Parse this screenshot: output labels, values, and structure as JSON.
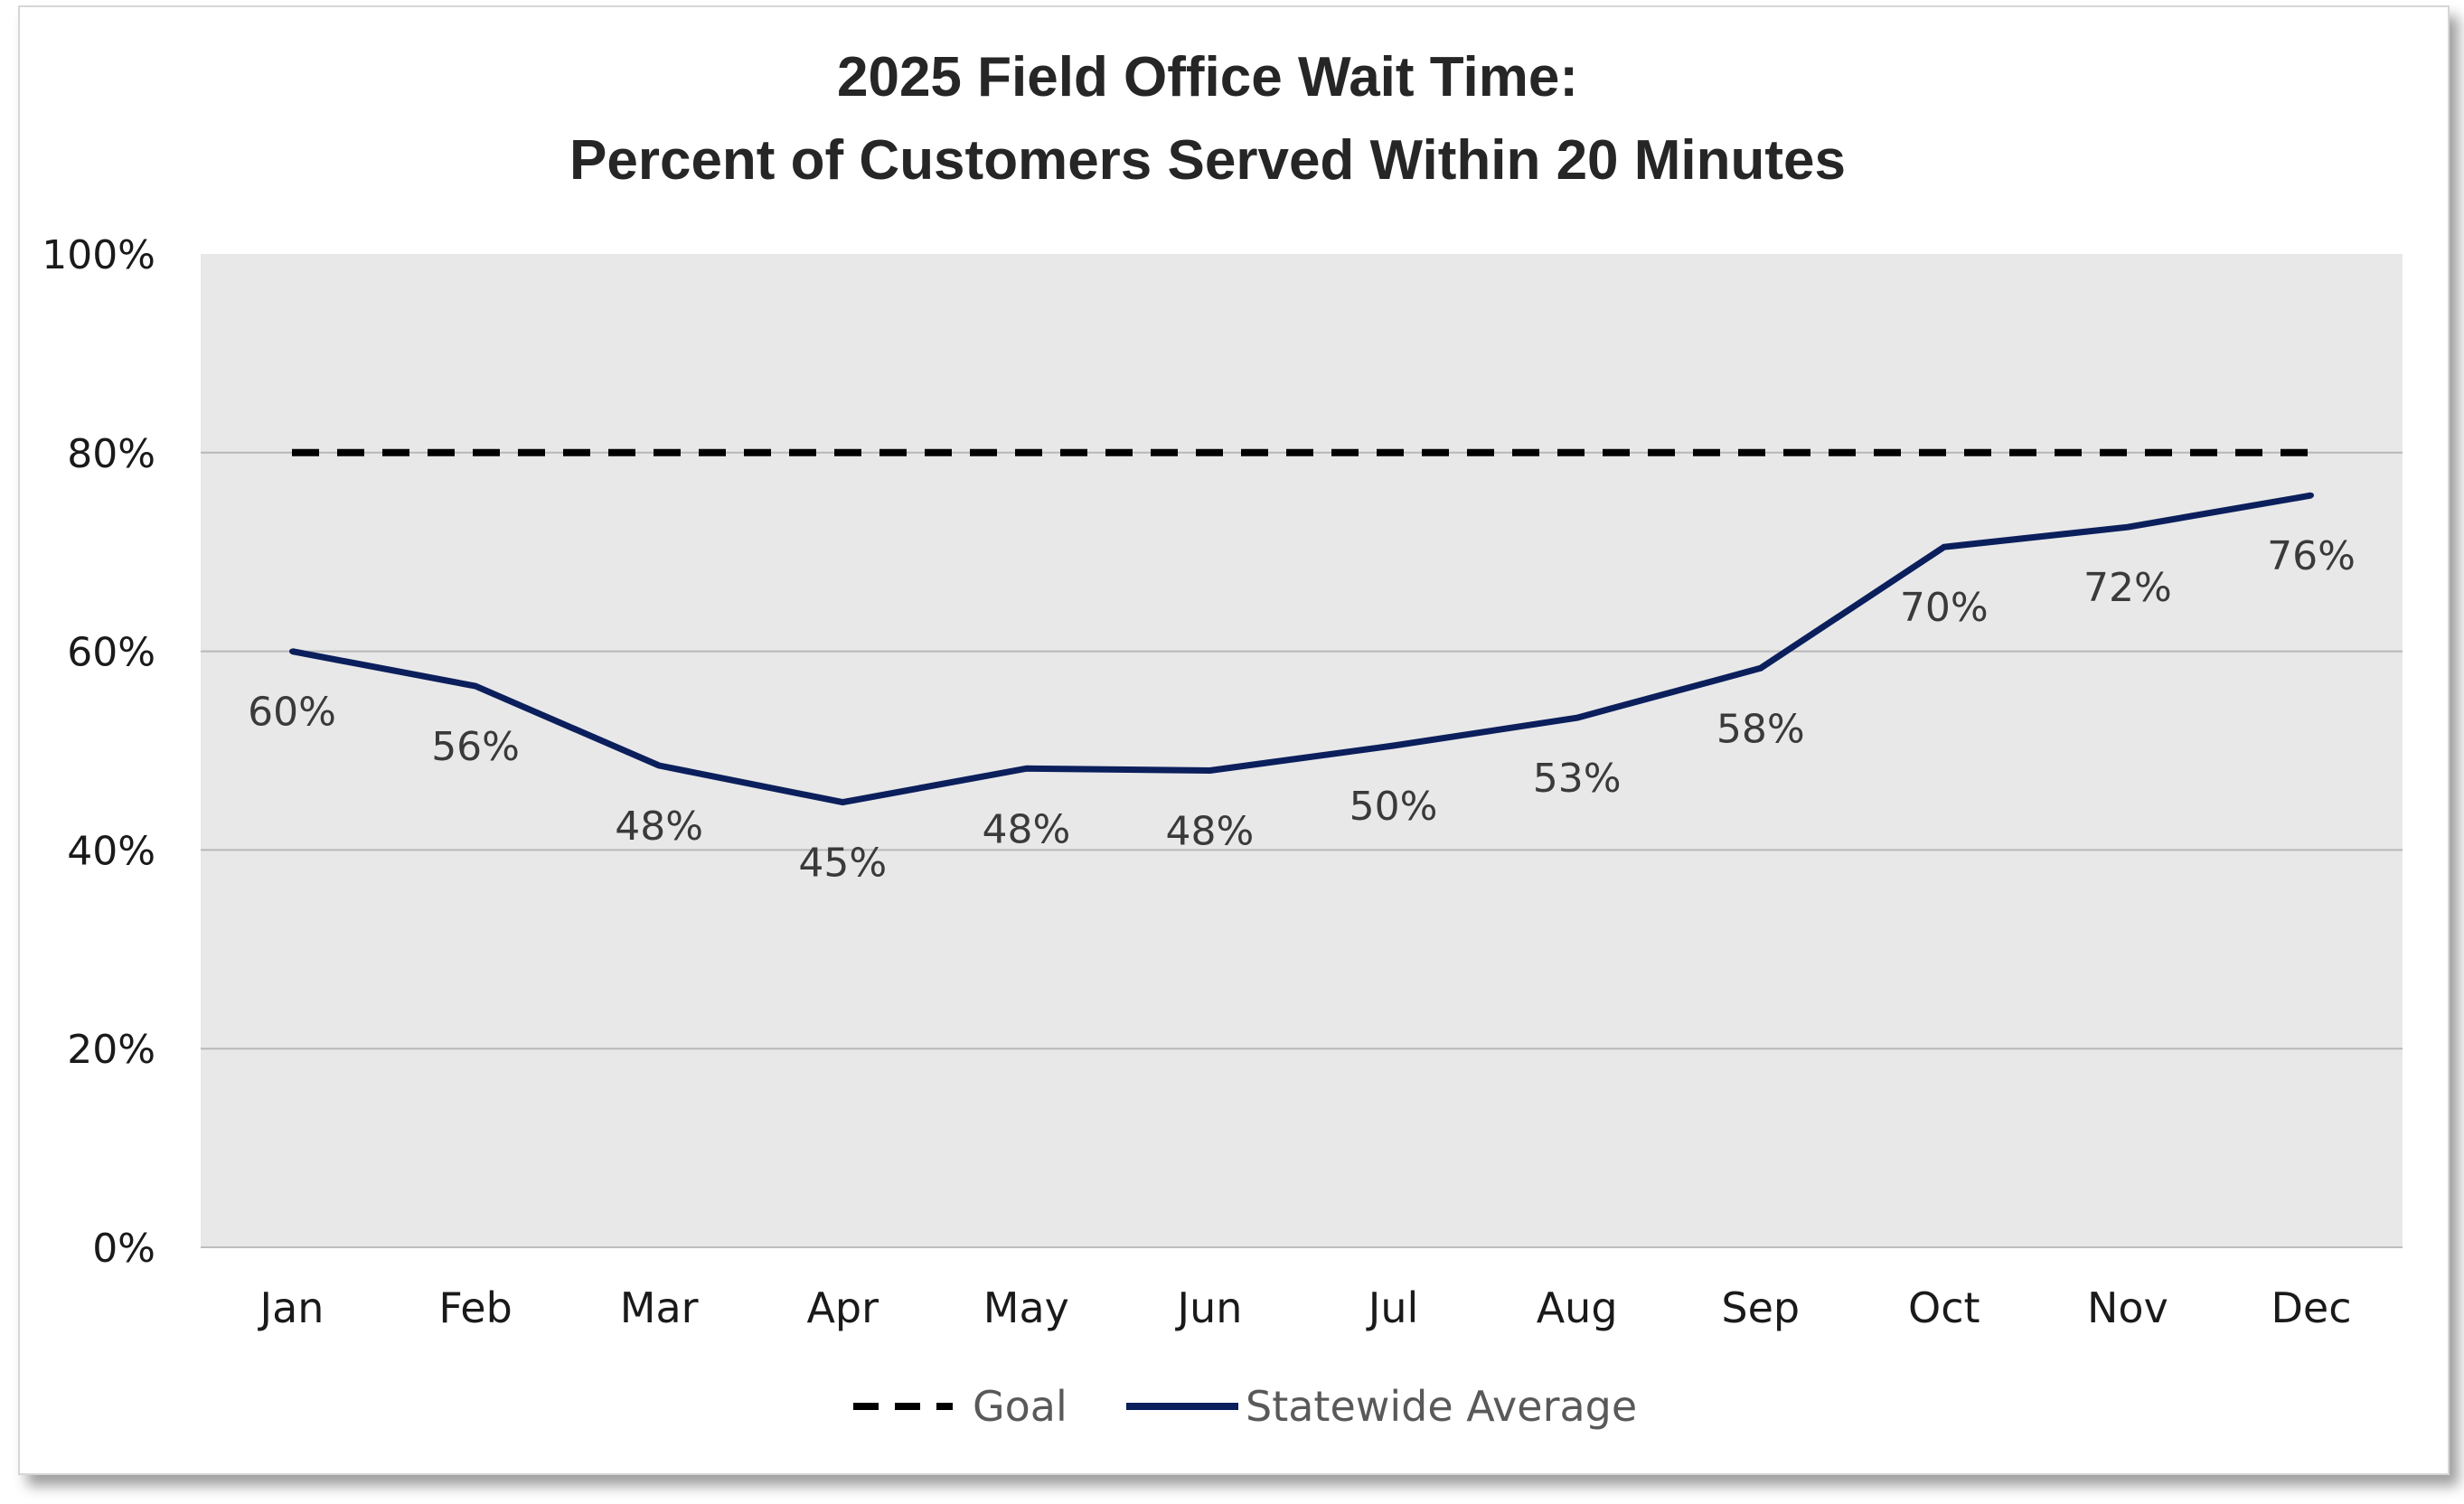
{
  "chart_data": {
    "type": "line",
    "title": "2025 Field Office Wait Time:",
    "subtitle": "Percent of Customers Served Within 20 Minutes",
    "categories": [
      "Jan",
      "Feb",
      "Mar",
      "Apr",
      "May",
      "Jun",
      "Jul",
      "Aug",
      "Sep",
      "Oct",
      "Nov",
      "Dec"
    ],
    "yticks": [
      "0%",
      "20%",
      "40%",
      "60%",
      "80%",
      "100%"
    ],
    "ylim": [
      0,
      100
    ],
    "grid": true,
    "legend_position": "bottom",
    "series": [
      {
        "name": "Goal",
        "values": [
          80,
          80,
          80,
          80,
          80,
          80,
          80,
          80,
          80,
          80,
          80,
          80
        ],
        "color": "#000000",
        "style": "dashed"
      },
      {
        "name": "Statewide Average",
        "values": [
          60,
          56.5,
          48.5,
          44.8,
          48.2,
          48,
          50.5,
          53.3,
          58.3,
          70.5,
          72.5,
          75.7
        ],
        "labels": [
          "60%",
          "56%",
          "48%",
          "45%",
          "48%",
          "48%",
          "50%",
          "53%",
          "58%",
          "70%",
          "72%",
          "76%"
        ],
        "color": "#0b1f5c",
        "style": "solid"
      }
    ],
    "colors": {
      "plot_background": "#e8e8e8",
      "gridline": "#b8b8b8"
    }
  }
}
